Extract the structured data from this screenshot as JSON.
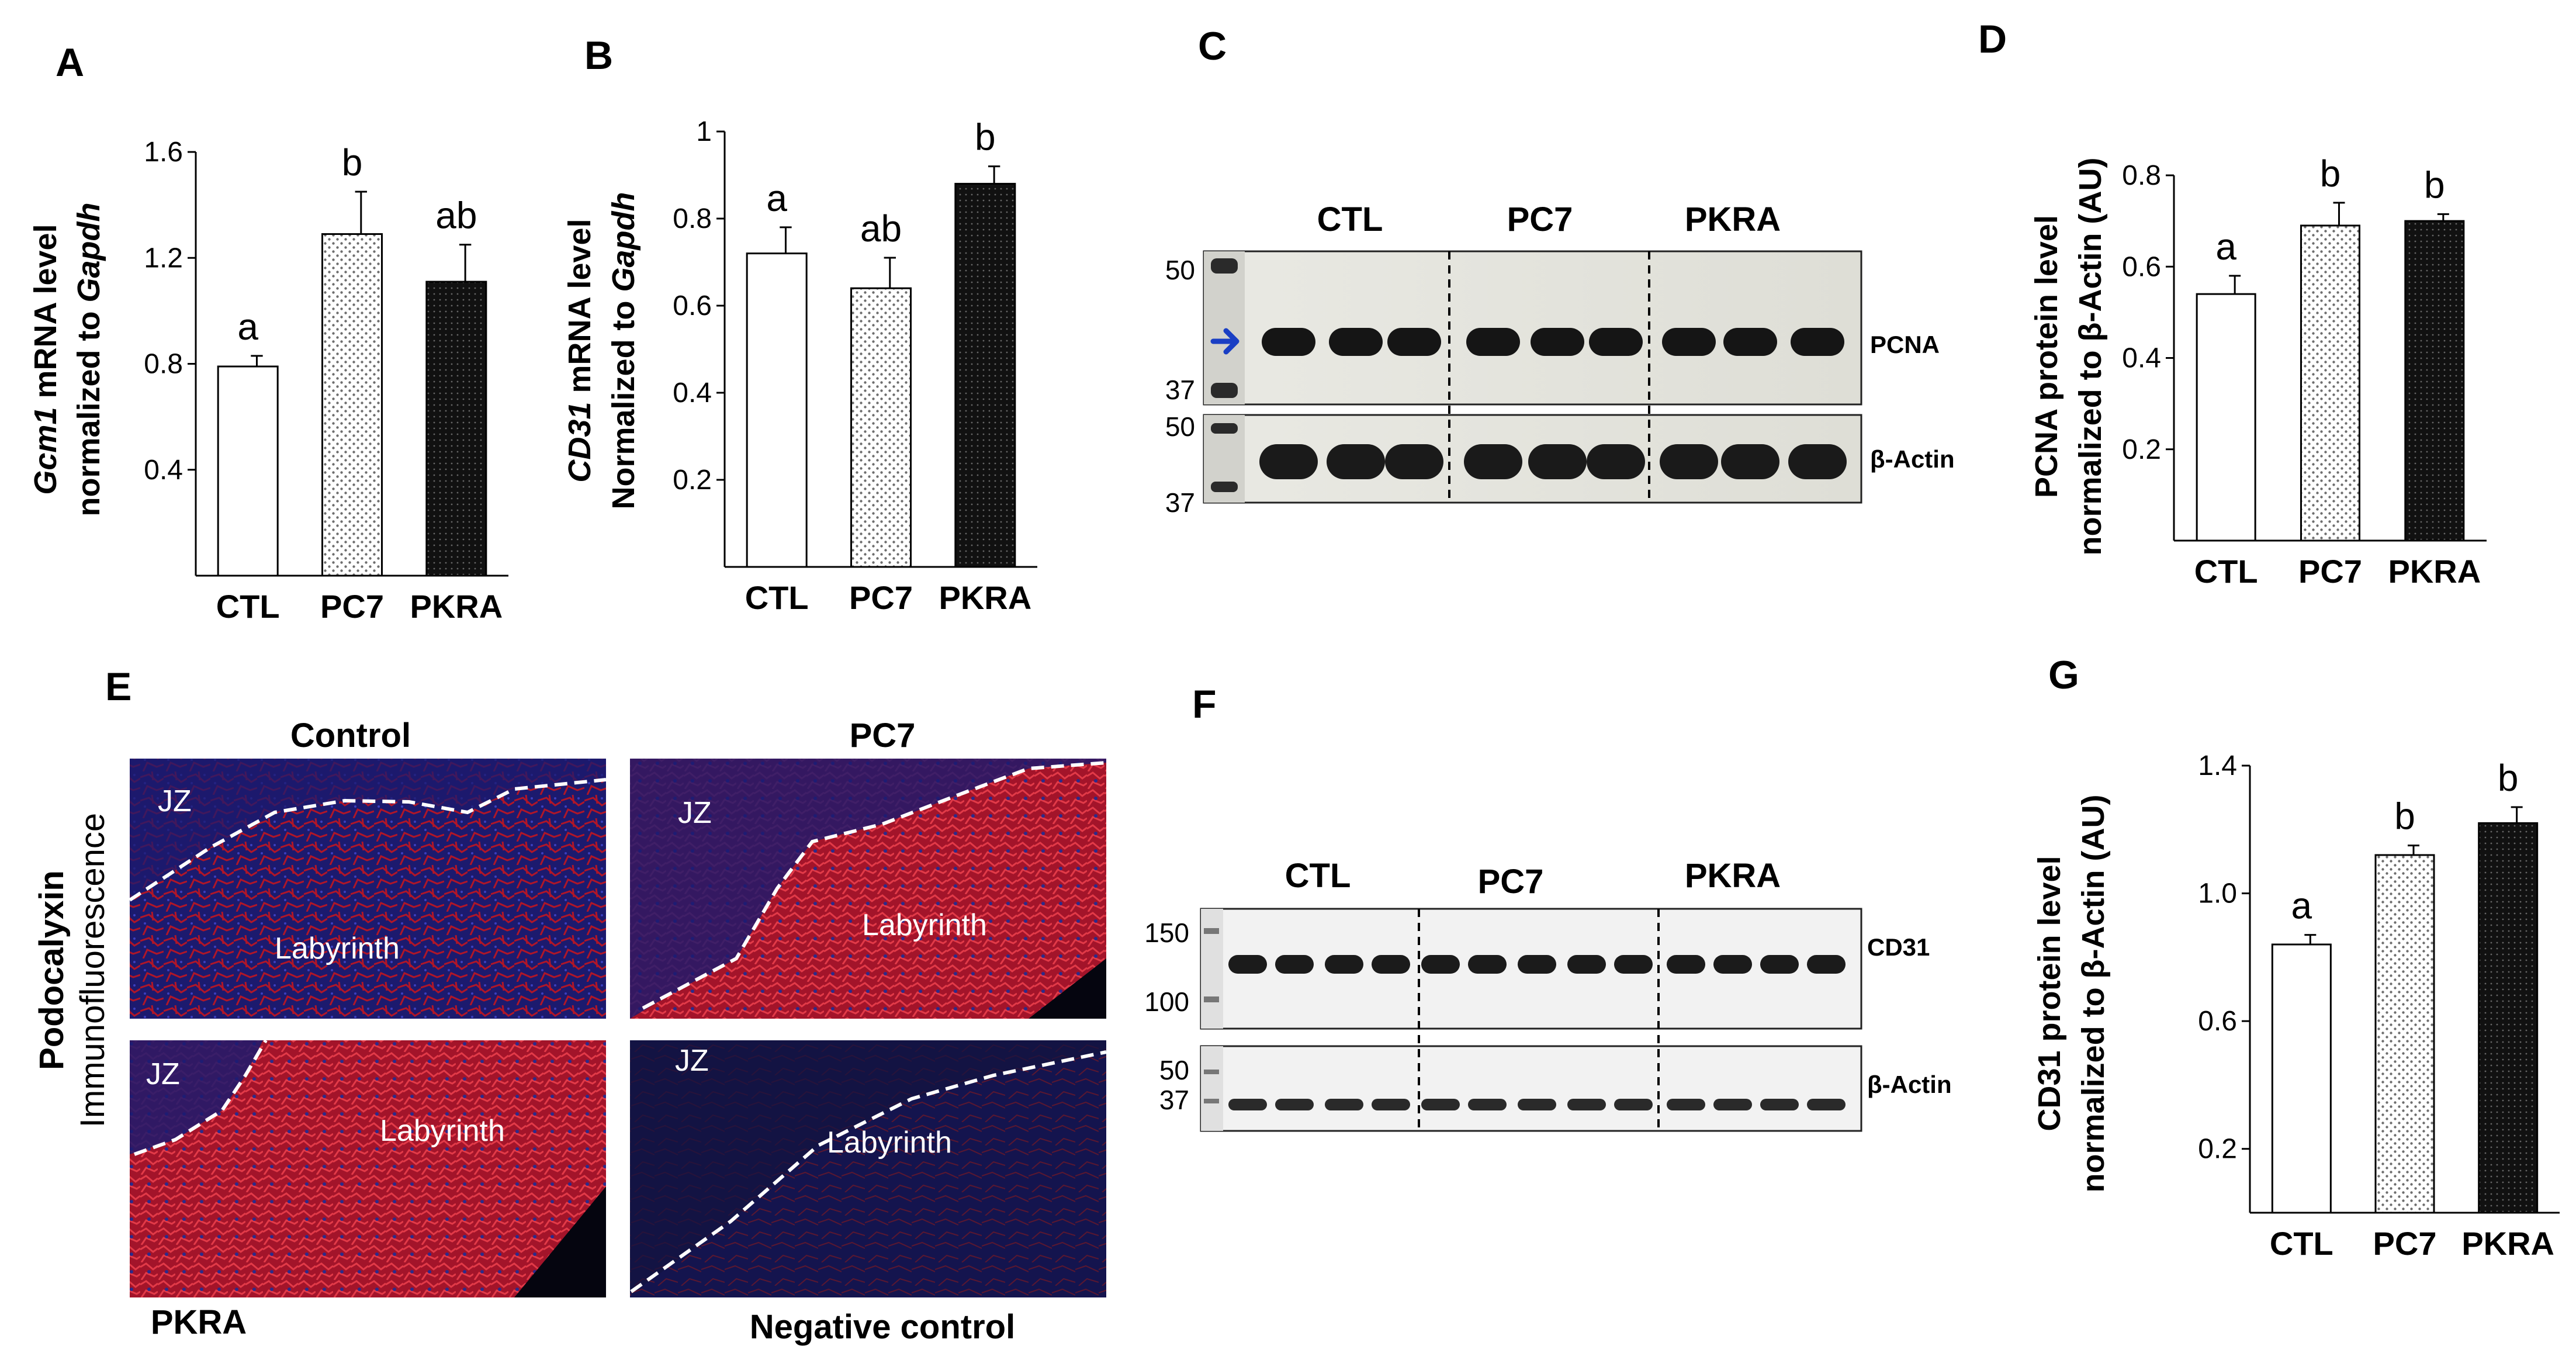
{
  "panels": {
    "A": "A",
    "B": "B",
    "C": "C",
    "D": "D",
    "E": "E",
    "F": "F",
    "G": "G"
  },
  "chart_data": [
    {
      "panel": "A",
      "type": "bar",
      "categories": [
        "CTL",
        "PC7",
        "PKRA"
      ],
      "values": [
        0.79,
        1.29,
        1.11
      ],
      "errors": [
        0.04,
        0.16,
        0.14
      ],
      "significance": [
        "a",
        "b",
        "ab"
      ],
      "fills": [
        "white",
        "dotted",
        "black"
      ],
      "ylim": [
        0,
        1.6
      ],
      "yticks": [
        0.4,
        0.8,
        1.2,
        1.6
      ],
      "ytick_labels": [
        "0.4",
        "0.8",
        "1.2",
        "1.6"
      ],
      "ylabel_line1_italic": "Gcm1",
      "ylabel_line1_rest": " mRNA level",
      "ylabel_line2_rest": "normalized to ",
      "ylabel_line2_italic": "Gapdh",
      "xlabel": "",
      "title": ""
    },
    {
      "panel": "B",
      "type": "bar",
      "categories": [
        "CTL",
        "PC7",
        "PKRA"
      ],
      "values": [
        0.72,
        0.64,
        0.88
      ],
      "errors": [
        0.06,
        0.07,
        0.04
      ],
      "significance": [
        "a",
        "ab",
        "b"
      ],
      "fills": [
        "white",
        "dotted",
        "black"
      ],
      "ylim": [
        0,
        1.0
      ],
      "yticks": [
        0.2,
        0.4,
        0.6,
        0.8,
        1.0
      ],
      "ytick_labels": [
        "0.2",
        "0.4",
        "0.6",
        "0.8",
        "1"
      ],
      "ylabel_line1_italic": "CD31",
      "ylabel_line1_rest": " mRNA level",
      "ylabel_line2_rest": "Normalized to ",
      "ylabel_line2_italic": "Gapdh",
      "xlabel": "",
      "title": ""
    },
    {
      "panel": "D",
      "type": "bar",
      "categories": [
        "CTL",
        "PC7",
        "PKRA"
      ],
      "values": [
        0.54,
        0.69,
        0.7
      ],
      "errors": [
        0.04,
        0.05,
        0.015
      ],
      "significance": [
        "a",
        "b",
        "b"
      ],
      "fills": [
        "white",
        "dotted",
        "black"
      ],
      "ylim": [
        0,
        0.8
      ],
      "yticks": [
        0.2,
        0.4,
        0.6,
        0.8
      ],
      "ytick_labels": [
        "0.2",
        "0.4",
        "0.6",
        "0.8"
      ],
      "ylabel_line1": "PCNA protein level",
      "ylabel_line2": "normalized to β-Actin (AU)",
      "xlabel": "",
      "title": ""
    },
    {
      "panel": "G",
      "type": "bar",
      "categories": [
        "CTL",
        "PC7",
        "PKRA"
      ],
      "values": [
        0.84,
        1.12,
        1.22
      ],
      "errors": [
        0.03,
        0.03,
        0.05
      ],
      "significance": [
        "a",
        "b",
        "b"
      ],
      "fills": [
        "white",
        "dotted",
        "black"
      ],
      "ylim": [
        0,
        1.4
      ],
      "yticks": [
        0.2,
        0.6,
        1.0,
        1.4
      ],
      "ytick_labels": [
        "0.2",
        "0.6",
        "1.0",
        "1.4"
      ],
      "ylabel_line1": "CD31 protein level",
      "ylabel_line2": "normalized to β-Actin  (AU)",
      "xlabel": "",
      "title": ""
    }
  ],
  "blot_C": {
    "group_labels": [
      "CTL",
      "PC7",
      "PKRA"
    ],
    "upper_mw": [
      "50",
      "37"
    ],
    "lower_mw": [
      "50",
      "37"
    ],
    "upper_band_label": "PCNA",
    "lower_band_label": "β-Actin",
    "arrow_color": "#1a3fc4"
  },
  "blot_F": {
    "group_labels": [
      "CTL",
      "PC7",
      "PKRA"
    ],
    "upper_mw": [
      "150",
      "100"
    ],
    "lower_mw": [
      "50",
      "37"
    ],
    "upper_band_label": "CD31",
    "lower_band_label": "β-Actin"
  },
  "panel_E": {
    "side_label_line1": "Podocalyxin",
    "side_label_line2": "Immunofluorescence",
    "titles": {
      "control": "Control",
      "pc7": "PC7",
      "pkra": "PKRA",
      "negative": "Negative control"
    },
    "region_jz": "JZ",
    "region_labyrinth": "Labyrinth",
    "colors": {
      "nuclei": "#1c1a6e",
      "stain": "#c0182a",
      "boundary": "#ffffff"
    }
  }
}
